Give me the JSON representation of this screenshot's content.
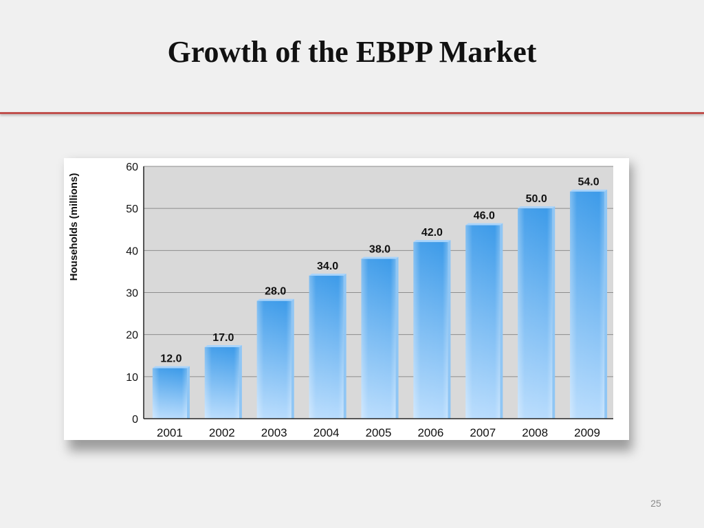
{
  "slide": {
    "title": "Growth of the EBPP Market",
    "page_number": "25"
  },
  "chart_data": {
    "type": "bar",
    "title": "",
    "xlabel": "",
    "ylabel": "Households (millions)",
    "categories": [
      "2001",
      "2002",
      "2003",
      "2004",
      "2005",
      "2006",
      "2007",
      "2008",
      "2009"
    ],
    "values": [
      12.0,
      17.0,
      28.0,
      34.0,
      38.0,
      42.0,
      46.0,
      50.0,
      54.0
    ],
    "data_labels": [
      "12.0",
      "17.0",
      "28.0",
      "34.0",
      "38.0",
      "42.0",
      "46.0",
      "50.0",
      "54.0"
    ],
    "ylim": [
      0,
      60
    ],
    "yticks": [
      "0",
      "10",
      "20",
      "30",
      "40",
      "50",
      "60"
    ],
    "grid": true,
    "legend": "none",
    "colors": {
      "plot_background": "#d9d9d9",
      "bar_top": "#3d9be9",
      "bar_bottom": "#b8dcfd",
      "grid_line": "#8c8c8c"
    }
  }
}
